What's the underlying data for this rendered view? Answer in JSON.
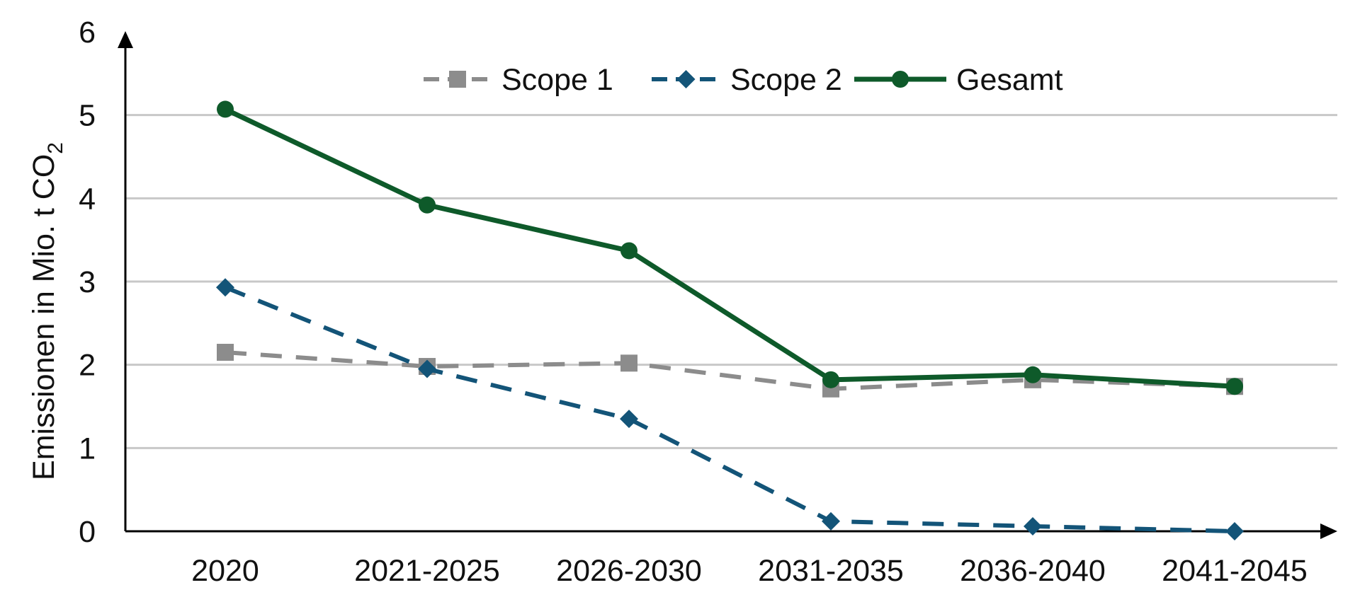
{
  "chart_data": {
    "type": "line",
    "title": "",
    "xlabel": "",
    "ylabel": "Emissionen in Mio. t CO",
    "ylabel_subscript": "2",
    "categories": [
      "2020",
      "2021-2025",
      "2026-2030",
      "2031-2035",
      "2036-2040",
      "2041-2045"
    ],
    "ylim": [
      0,
      6
    ],
    "yticks": [
      "0",
      "1",
      "2",
      "3",
      "4",
      "5",
      "6"
    ],
    "grid": true,
    "legend_position": "top-center",
    "series": [
      {
        "name": "Scope 1",
        "values": [
          2.15,
          1.98,
          2.02,
          1.71,
          1.82,
          1.74
        ],
        "color": "#8c8c8c",
        "line_style": "dashed",
        "marker": "square"
      },
      {
        "name": "Scope 2",
        "values": [
          2.93,
          1.95,
          1.35,
          0.12,
          0.06,
          0.0
        ],
        "color": "#135478",
        "line_style": "dashed",
        "marker": "diamond"
      },
      {
        "name": "Gesamt",
        "values": [
          5.07,
          3.92,
          3.37,
          1.82,
          1.88,
          1.74
        ],
        "color": "#0e5a2a",
        "line_style": "solid",
        "marker": "circle"
      }
    ],
    "gridline_color": "#c8c8c8",
    "axis_color": "#000000"
  }
}
